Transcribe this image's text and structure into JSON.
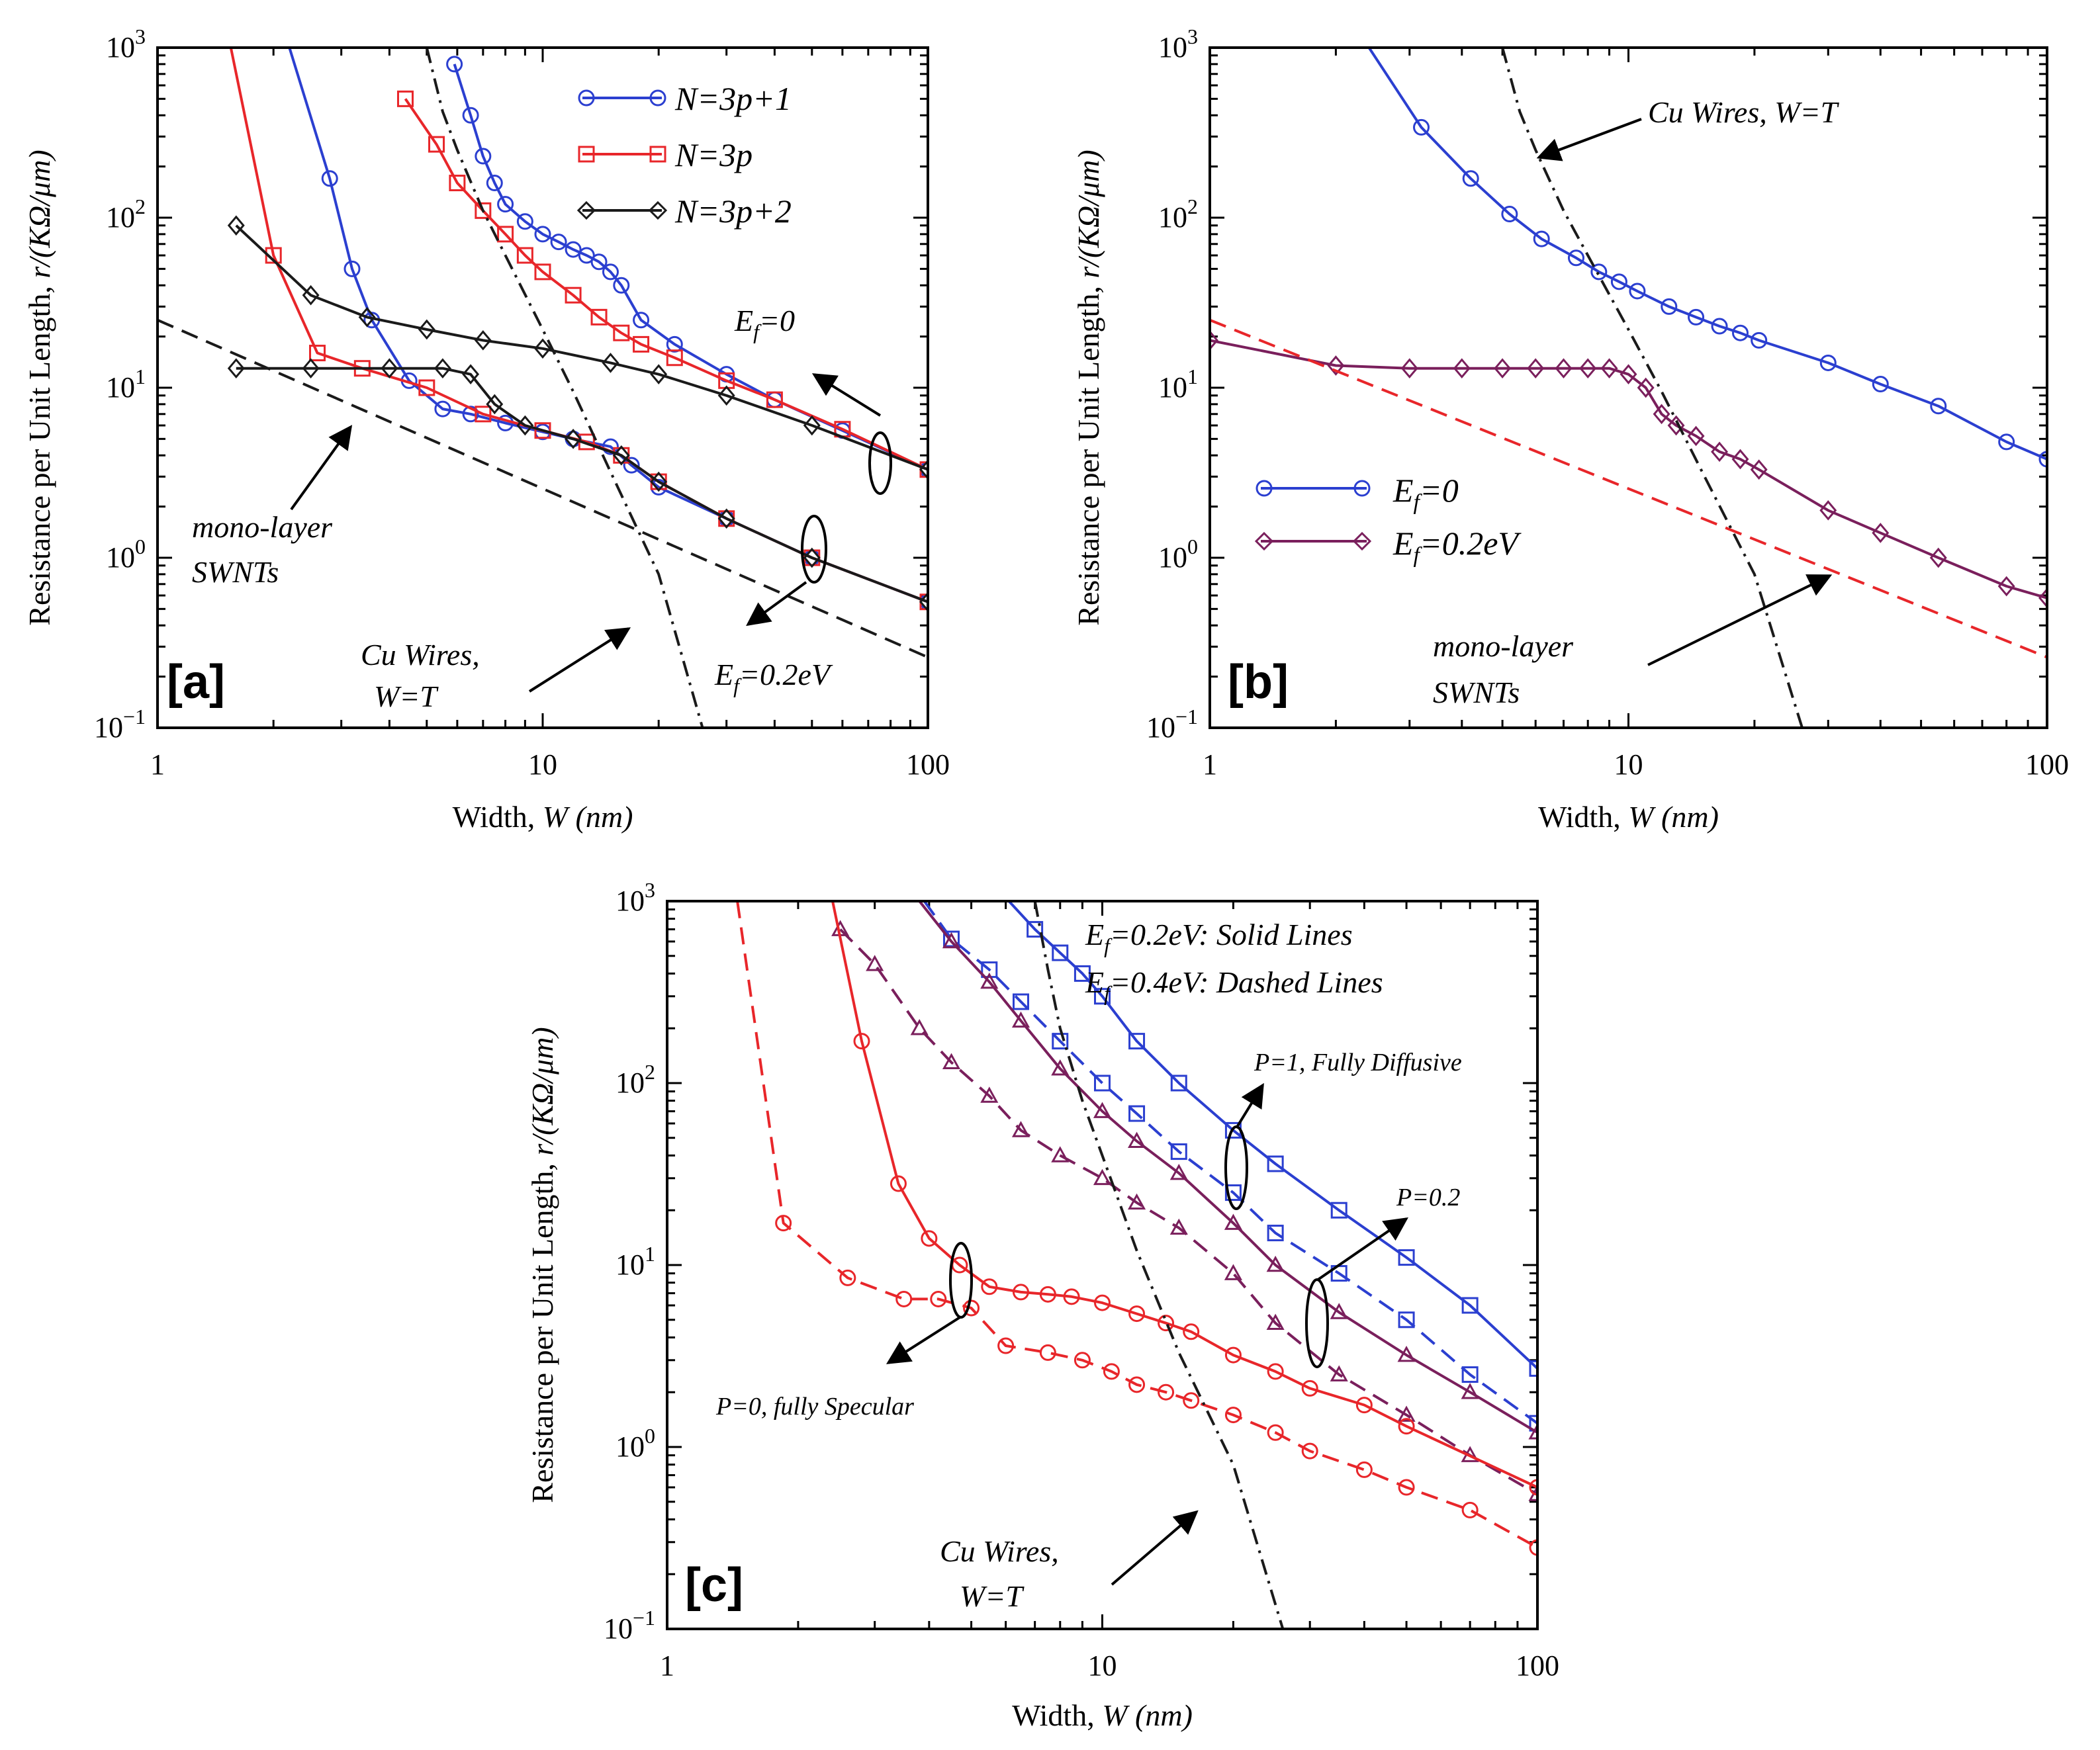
{
  "figure": {
    "ylabel_prefix": "Resistance per Unit Length, ",
    "ylabel_var": "r/(KΩ/μm)",
    "xlabel_prefix": "Width, ",
    "xlabel_var": "W (nm)",
    "x_ticks": [
      "1",
      "10",
      "100"
    ],
    "y_tick_base": "10",
    "y_tick_exps": [
      "−1",
      "0",
      "1",
      "2",
      "3"
    ]
  },
  "chart_data": [
    {
      "panel": "[a]",
      "type": "line",
      "x_scale": "log",
      "y_scale": "log",
      "xlim": [
        1,
        100
      ],
      "ylim": [
        0.1,
        1000
      ],
      "xlabel": "Width, W (nm)",
      "ylabel": "Resistance per Unit Length, r/(KΩ/μm)",
      "legend": [
        {
          "label": "N=3p+1",
          "color": "#2b3fd0",
          "marker": "circle"
        },
        {
          "label": "N=3p",
          "color": "#e8262a",
          "marker": "square"
        },
        {
          "label": "N=3p+2",
          "color": "#1a1a1a",
          "marker": "diamond"
        }
      ],
      "series": [
        {
          "name": "N=3p+1, Ef=0",
          "color": "#2b3fd0",
          "marker": "circle",
          "dash": "solid",
          "draw_markers": true,
          "x": [
            5.9,
            6.5,
            7.0,
            7.5,
            8.0,
            9.0,
            10.0,
            11.0,
            12.0,
            13.0,
            14.0,
            15.0,
            16.0,
            18.0,
            22.0,
            30.0,
            40.0,
            60.0,
            100.0
          ],
          "y": [
            800,
            400,
            230,
            160,
            120,
            95,
            80,
            72,
            65,
            60,
            55,
            48,
            40,
            25,
            18,
            12,
            8.5,
            5.6,
            3.3
          ]
        },
        {
          "name": "N=3p+1, Ef=0.2eV",
          "color": "#2b3fd0",
          "marker": "circle",
          "dash": "solid",
          "draw_markers": true,
          "x": [
            2.2,
            2.8,
            3.2,
            3.6,
            4.5,
            5.5,
            6.5,
            8.0,
            10.0,
            12.0,
            15.0,
            17.0,
            20.0,
            30.0,
            50.0,
            100.0
          ],
          "y": [
            1000,
            170,
            50,
            25,
            11,
            7.5,
            7.0,
            6.2,
            5.5,
            5.0,
            4.5,
            3.5,
            2.6,
            1.7,
            1.0,
            0.55
          ]
        },
        {
          "name": "N=3p, Ef=0",
          "color": "#e8262a",
          "marker": "square",
          "dash": "solid",
          "draw_markers": true,
          "x": [
            4.4,
            5.3,
            6.0,
            7.0,
            8.0,
            9.0,
            10.0,
            12.0,
            14.0,
            16.0,
            18.0,
            22.0,
            30.0,
            40.0,
            60.0,
            100.0
          ],
          "y": [
            500,
            270,
            160,
            110,
            80,
            60,
            48,
            35,
            26,
            21,
            18,
            15,
            11,
            8.5,
            5.7,
            3.3
          ]
        },
        {
          "name": "N=3p, Ef=0.2eV",
          "color": "#e8262a",
          "marker": "square",
          "dash": "solid",
          "draw_markers": true,
          "x": [
            1.55,
            2.0,
            2.6,
            3.4,
            5.0,
            7.0,
            10.0,
            13.0,
            16.0,
            20.0,
            30.0,
            50.0,
            100.0
          ],
          "y": [
            1000,
            60,
            16,
            13,
            10,
            7.0,
            5.6,
            4.8,
            4.0,
            2.8,
            1.7,
            1.0,
            0.55
          ]
        },
        {
          "name": "N=3p+2, Ef=0",
          "color": "#1a1a1a",
          "marker": "diamond",
          "dash": "solid",
          "draw_markers": true,
          "x": [
            1.6,
            2.5,
            3.5,
            5.0,
            7.0,
            10.0,
            15.0,
            20.0,
            30.0,
            50.0,
            100.0
          ],
          "y": [
            90,
            35,
            26,
            22,
            19,
            17,
            14,
            12,
            9,
            6,
            3.3
          ]
        },
        {
          "name": "N=3p+2, Ef=0.2eV",
          "color": "#1a1a1a",
          "marker": "diamond",
          "dash": "solid",
          "draw_markers": true,
          "x": [
            1.6,
            2.5,
            4.0,
            5.5,
            6.5,
            7.5,
            9.0,
            12.0,
            16.0,
            20.0,
            30.0,
            50.0,
            100.0
          ],
          "y": [
            13,
            13,
            13,
            13,
            12,
            8.0,
            6.0,
            5.0,
            4.0,
            2.8,
            1.7,
            1.0,
            0.55
          ]
        },
        {
          "name": "mono-layer SWNTs",
          "color": "#1a1a1a",
          "marker": "none",
          "dash": "dashed",
          "draw_markers": false,
          "x": [
            1,
            100
          ],
          "y": [
            25,
            0.26
          ]
        },
        {
          "name": "Cu Wires, W=T",
          "color": "#1a1a1a",
          "marker": "none",
          "dash": "dashdot",
          "draw_markers": false,
          "x": [
            5.0,
            5.5,
            6.0,
            7.0,
            8.0,
            10.0,
            12.0,
            15.0,
            20.0,
            26.0
          ],
          "y": [
            1000,
            420,
            250,
            110,
            60,
            22,
            9.5,
            3.2,
            0.8,
            0.1
          ]
        }
      ],
      "annotations": [
        "E_f=0",
        "E_f=0.2eV",
        "mono-layer",
        "SWNTs",
        "Cu Wires,",
        "W=T"
      ]
    },
    {
      "panel": "[b]",
      "type": "line",
      "x_scale": "log",
      "y_scale": "log",
      "xlim": [
        1,
        100
      ],
      "ylim": [
        0.1,
        1000
      ],
      "xlabel": "Width, W (nm)",
      "ylabel": "Resistance per Unit Length, r/(KΩ/μm)",
      "legend": [
        {
          "label": "E_f=0",
          "color": "#2b3fd0",
          "marker": "circle"
        },
        {
          "label": "E_f=0.2eV",
          "color": "#7a1f5c",
          "marker": "diamond"
        }
      ],
      "series": [
        {
          "name": "E_f=0",
          "color": "#2b3fd0",
          "marker": "circle",
          "dash": "solid",
          "draw_markers": true,
          "x": [
            2.4,
            3.2,
            4.2,
            5.2,
            6.2,
            7.5,
            8.5,
            9.5,
            10.5,
            12.5,
            14.5,
            16.5,
            18.5,
            20.5,
            30.0,
            40.0,
            55.0,
            80.0,
            100.0
          ],
          "y": [
            1000,
            340,
            170,
            105,
            75,
            58,
            48,
            42,
            37,
            30,
            26,
            23,
            21,
            19,
            14,
            10.5,
            7.8,
            4.8,
            3.8
          ]
        },
        {
          "name": "E_f=0.2eV",
          "color": "#7a1f5c",
          "marker": "diamond",
          "dash": "solid",
          "draw_markers": true,
          "x": [
            1.0,
            2.0,
            3.0,
            4.0,
            5.0,
            6.0,
            7.0,
            8.0,
            9.0,
            10.0,
            11.0,
            12.0,
            13.0,
            14.5,
            16.5,
            18.5,
            20.5,
            30.0,
            40.0,
            55.0,
            80.0,
            100.0
          ],
          "y": [
            19,
            13.5,
            13,
            13,
            13,
            13,
            13,
            13,
            13,
            12,
            10,
            7.0,
            6.0,
            5.2,
            4.2,
            3.8,
            3.3,
            1.9,
            1.4,
            1.0,
            0.68,
            0.58
          ]
        },
        {
          "name": "mono-layer SWNTs",
          "color": "#e8262a",
          "marker": "none",
          "dash": "dashed",
          "draw_markers": false,
          "x": [
            1,
            100
          ],
          "y": [
            25,
            0.26
          ]
        },
        {
          "name": "Cu Wires, W=T",
          "color": "#1a1a1a",
          "marker": "none",
          "dash": "dashdot",
          "draw_markers": false,
          "x": [
            5.0,
            5.5,
            6.0,
            7.0,
            8.0,
            10.0,
            12.0,
            15.0,
            20.0,
            26.0
          ],
          "y": [
            1000,
            420,
            250,
            110,
            60,
            22,
            9.5,
            3.2,
            0.8,
            0.1
          ]
        }
      ],
      "annotations": [
        "Cu Wires, W=T",
        "mono-layer",
        "SWNTs"
      ]
    },
    {
      "panel": "[c]",
      "type": "line",
      "x_scale": "log",
      "y_scale": "log",
      "xlim": [
        1,
        100
      ],
      "ylim": [
        0.1,
        1000
      ],
      "xlabel": "Width, W (nm)",
      "ylabel": "Resistance per Unit Length, r/(KΩ/μm)",
      "legend_text": [
        "E_f=0.2eV:  Solid Lines",
        "E_f=0.4eV:  Dashed Lines"
      ],
      "series": [
        {
          "name": "P=1, Fully Diffusive, E_f=0.2eV",
          "color": "#2b3fd0",
          "marker": "square",
          "dash": "solid",
          "draw_markers": true,
          "x": [
            6.1,
            7.0,
            8.0,
            9.0,
            10.0,
            12.0,
            15.0,
            20.0,
            25.0,
            35.0,
            50.0,
            70.0,
            100.0
          ],
          "y": [
            1000,
            700,
            520,
            400,
            300,
            170,
            100,
            55,
            36,
            20,
            11,
            6,
            2.7
          ]
        },
        {
          "name": "P=1, Fully Diffusive, E_f=0.4eV",
          "color": "#2b3fd0",
          "marker": "square",
          "dash": "dashed",
          "draw_markers": true,
          "x": [
            3.9,
            4.5,
            5.5,
            6.5,
            8.0,
            10.0,
            12.0,
            15.0,
            20.0,
            25.0,
            35.0,
            50.0,
            70.0,
            100.0
          ],
          "y": [
            1000,
            620,
            420,
            280,
            170,
            100,
            68,
            42,
            25,
            15,
            9,
            5,
            2.5,
            1.35
          ]
        },
        {
          "name": "P=0.2, E_f=0.2eV",
          "color": "#7a1f5c",
          "marker": "triangle",
          "dash": "solid",
          "draw_markers": true,
          "x": [
            3.8,
            4.5,
            5.5,
            6.5,
            8.0,
            10.0,
            12.0,
            15.0,
            20.0,
            25.0,
            35.0,
            50.0,
            70.0,
            100.0
          ],
          "y": [
            1000,
            600,
            360,
            220,
            120,
            70,
            48,
            32,
            17,
            10,
            5.5,
            3.2,
            2.0,
            1.2
          ]
        },
        {
          "name": "P=0.2, E_f=0.4eV",
          "color": "#7a1f5c",
          "marker": "triangle",
          "dash": "dashed",
          "draw_markers": true,
          "x": [
            2.5,
            3.0,
            3.8,
            4.5,
            5.5,
            6.5,
            8.0,
            10.0,
            12.0,
            15.0,
            20.0,
            25.0,
            35.0,
            50.0,
            70.0,
            100.0
          ],
          "y": [
            700,
            450,
            200,
            130,
            85,
            55,
            40,
            30,
            22,
            16,
            9,
            4.8,
            2.5,
            1.5,
            0.9,
            0.55
          ]
        },
        {
          "name": "P=0, fully Specular, E_f=0.2eV",
          "color": "#e8262a",
          "marker": "circle",
          "dash": "solid",
          "draw_markers": true,
          "x": [
            2.4,
            2.8,
            3.4,
            4.0,
            4.7,
            5.5,
            6.5,
            7.5,
            8.5,
            10.0,
            12.0,
            14.0,
            16.0,
            20.0,
            25.0,
            30.0,
            40.0,
            50.0,
            100.0
          ],
          "y": [
            1000,
            170,
            28,
            14,
            10,
            7.6,
            7.1,
            6.9,
            6.7,
            6.2,
            5.4,
            4.8,
            4.3,
            3.2,
            2.6,
            2.1,
            1.7,
            1.3,
            0.6
          ]
        },
        {
          "name": "P=0, fully Specular, E_f=0.4eV",
          "color": "#e8262a",
          "marker": "circle",
          "dash": "dashed",
          "draw_markers": true,
          "x": [
            1.45,
            1.85,
            2.6,
            3.5,
            4.2,
            5.0,
            6.0,
            7.5,
            9.0,
            10.5,
            12.0,
            14.0,
            16.0,
            20.0,
            25.0,
            30.0,
            40.0,
            50.0,
            70.0,
            100.0
          ],
          "y": [
            1000,
            17,
            8.5,
            6.5,
            6.5,
            5.8,
            3.6,
            3.3,
            3.0,
            2.6,
            2.2,
            2.0,
            1.8,
            1.5,
            1.2,
            0.95,
            0.75,
            0.6,
            0.45,
            0.28
          ]
        },
        {
          "name": "Cu Wires, W=T",
          "color": "#1a1a1a",
          "marker": "none",
          "dash": "dashdot",
          "draw_markers": false,
          "x": [
            7.0,
            7.5,
            8.0,
            9.0,
            10.0,
            12.0,
            15.0,
            20.0,
            26.0
          ],
          "y": [
            1000,
            420,
            200,
            80,
            40,
            12,
            3.3,
            0.8,
            0.1
          ]
        }
      ],
      "annotations": [
        "P=1, Fully Diffusive",
        "P=0.2",
        "P=0, fully Specular",
        "Cu Wires,",
        "W=T"
      ]
    }
  ]
}
